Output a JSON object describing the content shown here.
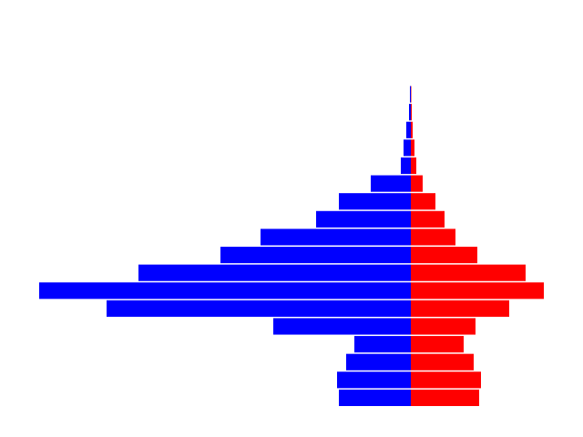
{
  "chart_data": {
    "type": "pyramid",
    "categories": [
      null,
      null,
      null,
      null,
      null,
      null,
      null,
      null,
      null,
      null,
      null,
      null,
      null,
      null,
      null,
      null,
      null,
      null
    ],
    "series": [
      {
        "color": "#0000ff",
        "values": [
          79,
          81,
          71,
          62,
          151,
          334,
          408,
          299,
          209,
          165,
          104,
          79,
          44,
          11,
          8,
          5,
          2,
          1
        ]
      },
      {
        "color": "#ff0000",
        "values": [
          75,
          77,
          69,
          58,
          71,
          108,
          146,
          126,
          73,
          49,
          37,
          27,
          13,
          6,
          4,
          2,
          1,
          0.5
        ]
      }
    ],
    "xlim": [
      -451,
      189
    ]
  }
}
